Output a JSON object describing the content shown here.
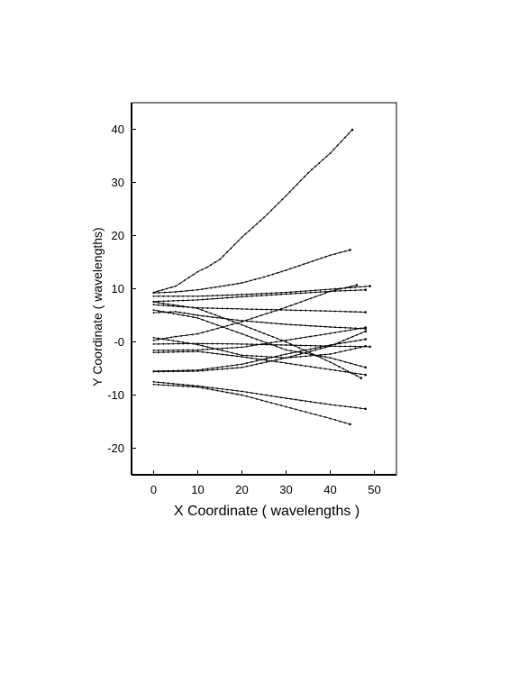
{
  "chart_data": {
    "type": "line",
    "title": "",
    "xlabel": "X Coordinate ( wavelengths )",
    "ylabel": "Y Coordinate ( wavelengths)",
    "xlim": [
      -5,
      55
    ],
    "ylim": [
      -25,
      45
    ],
    "xticks": [
      0,
      10,
      20,
      30,
      40,
      50
    ],
    "xtick_labels": [
      "0",
      "10",
      "20",
      "30",
      "40",
      "50"
    ],
    "yticks": [
      40,
      30,
      20,
      10,
      0,
      -10,
      -20
    ],
    "ytick_labels": [
      "40",
      "30",
      "20",
      "10",
      "-0",
      "-10",
      "-20"
    ],
    "grid": false,
    "legend": "none",
    "marker": "dot",
    "series": [
      {
        "x": [
          0,
          5,
          10,
          12,
          15,
          20,
          25,
          30,
          35,
          40,
          45
        ],
        "y": [
          9.3,
          10.5,
          13.2,
          14,
          15.5,
          19.7,
          23.4,
          27.5,
          31.8,
          35.5,
          39.9
        ]
      },
      {
        "x": [
          0,
          5,
          10,
          15,
          20,
          25,
          30,
          35,
          40,
          44.5
        ],
        "y": [
          9.2,
          9.4,
          9.8,
          10.4,
          11.1,
          12.2,
          13.5,
          14.9,
          16.3,
          17.3
        ]
      },
      {
        "x": [
          0,
          10,
          20,
          30,
          40,
          49
        ],
        "y": [
          8.6,
          8.6,
          8.9,
          9.3,
          9.9,
          10.5
        ]
      },
      {
        "x": [
          0,
          10,
          20,
          30,
          40,
          48
        ],
        "y": [
          7.6,
          7.9,
          8.5,
          9.0,
          9.5,
          9.8
        ]
      },
      {
        "x": [
          0,
          10,
          20,
          30,
          40,
          48
        ],
        "y": [
          7.0,
          6.4,
          6.2,
          6.0,
          5.8,
          5.6
        ]
      },
      {
        "x": [
          0,
          5,
          10,
          20,
          30,
          40,
          48
        ],
        "y": [
          5.5,
          5.7,
          5.0,
          4.0,
          3.3,
          2.8,
          2.5
        ]
      },
      {
        "x": [
          0,
          10,
          20,
          30,
          40,
          48
        ],
        "y": [
          6.0,
          4.5,
          1.5,
          -1.5,
          -3.0,
          -4.8
        ]
      },
      {
        "x": [
          0,
          10,
          20,
          30,
          40,
          47
        ],
        "y": [
          7.5,
          6.3,
          3.2,
          0.0,
          -3.8,
          -6.8
        ]
      },
      {
        "x": [
          0,
          5,
          10,
          20,
          30,
          40,
          46
        ],
        "y": [
          0.3,
          1.0,
          1.5,
          3.8,
          6.5,
          9.5,
          10.7
        ]
      },
      {
        "x": [
          0,
          10,
          20,
          30,
          40,
          49
        ],
        "y": [
          -0.4,
          -0.3,
          -0.4,
          -0.6,
          -0.8,
          -0.9
        ]
      },
      {
        "x": [
          0,
          10,
          20,
          30,
          40,
          48
        ],
        "y": [
          0.8,
          -0.5,
          -2.5,
          -3.0,
          -2.3,
          -0.8
        ]
      },
      {
        "x": [
          0,
          10,
          20,
          30,
          40,
          48
        ],
        "y": [
          -1.6,
          -1.5,
          -1.0,
          0.3,
          1.6,
          2.7
        ]
      },
      {
        "x": [
          0,
          10,
          20,
          30,
          40,
          48
        ],
        "y": [
          -2.0,
          -1.8,
          -2.8,
          -4.0,
          -5.2,
          -6.2
        ]
      },
      {
        "x": [
          0,
          10,
          20,
          30,
          40,
          48
        ],
        "y": [
          -5.5,
          -5.3,
          -4.2,
          -2.3,
          -0.6,
          0.5
        ]
      },
      {
        "x": [
          0,
          10,
          20,
          30,
          40,
          48
        ],
        "y": [
          -5.6,
          -5.5,
          -4.8,
          -3.0,
          -0.8,
          2.0
        ]
      },
      {
        "x": [
          0,
          10,
          20,
          30,
          40,
          48
        ],
        "y": [
          -7.5,
          -8.3,
          -9.3,
          -10.6,
          -11.8,
          -12.6
        ]
      },
      {
        "x": [
          0,
          10,
          20,
          30,
          40,
          44.5
        ],
        "y": [
          -8.0,
          -8.5,
          -10.0,
          -12.2,
          -14.4,
          -15.5
        ]
      }
    ]
  }
}
